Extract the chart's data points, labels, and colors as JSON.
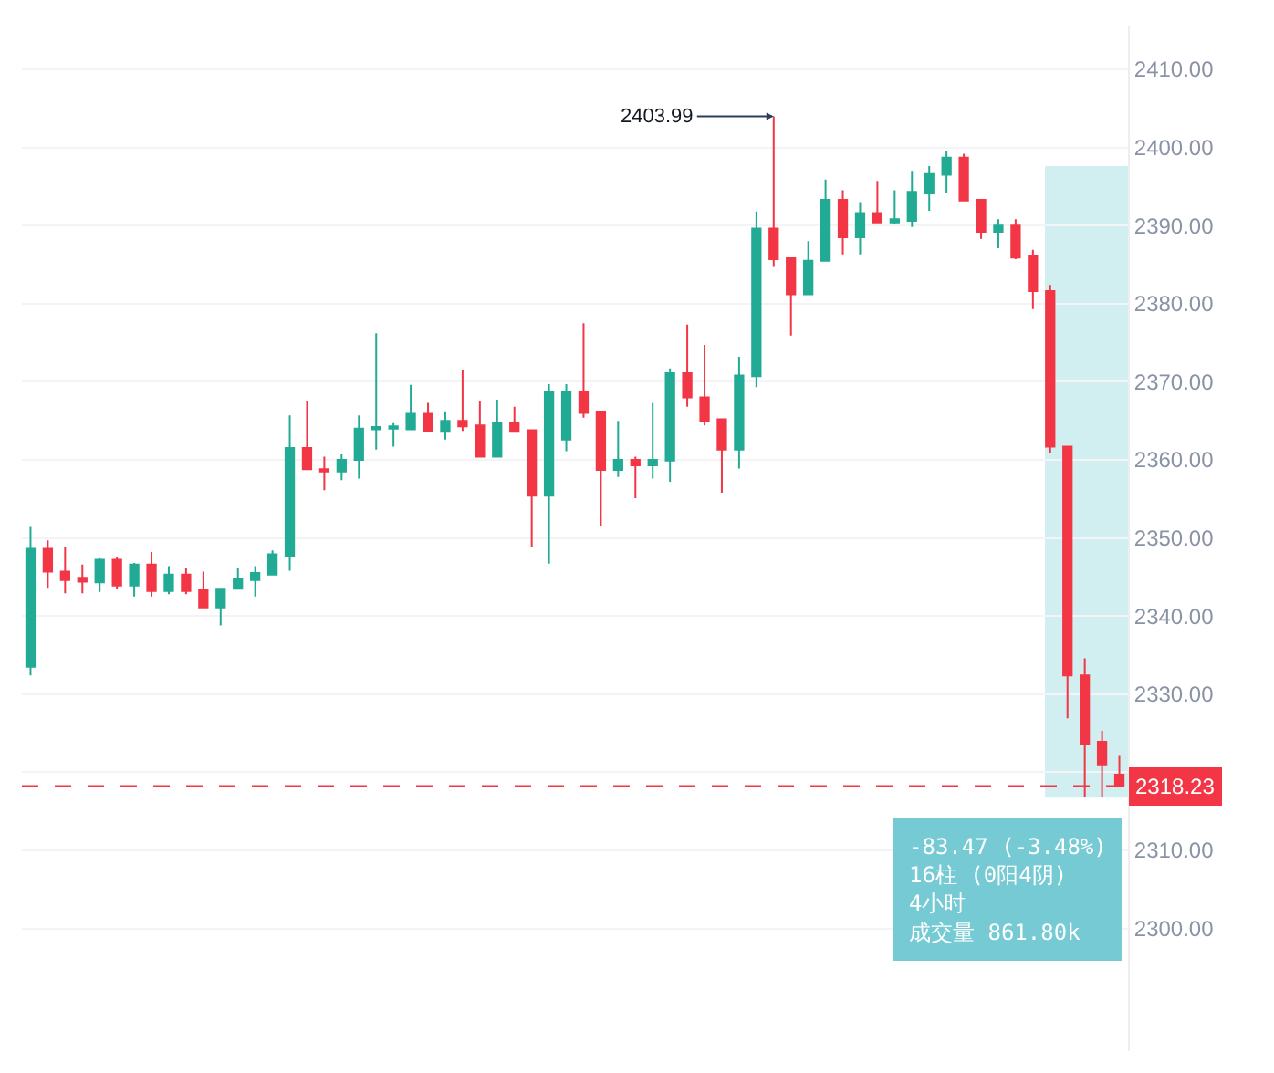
{
  "chart_data": {
    "type": "candlestick",
    "categories": [
      null,
      null,
      null,
      null,
      null,
      null,
      null,
      null,
      null,
      null,
      null,
      null,
      null,
      null,
      null,
      null,
      null,
      null,
      null,
      null,
      null,
      null,
      null,
      null,
      null,
      null,
      null,
      null,
      null,
      null,
      null,
      null,
      null,
      null,
      null,
      null,
      null,
      null,
      null,
      null,
      null,
      null,
      null,
      null,
      null,
      null,
      null,
      null,
      null,
      null,
      null,
      null,
      null,
      null,
      null,
      null,
      null,
      null,
      null,
      null,
      null,
      null,
      null,
      null
    ],
    "ohlc": [
      [
        2333.5,
        2351.4,
        2332.4,
        2348.6
      ],
      [
        2348.6,
        2349.7,
        2343.6,
        2345.7
      ],
      [
        2345.7,
        2348.8,
        2342.9,
        2344.6
      ],
      [
        2344.9,
        2346.6,
        2342.9,
        2344.4
      ],
      [
        2344.3,
        2347.4,
        2343.1,
        2347.2
      ],
      [
        2347.2,
        2347.6,
        2343.4,
        2343.9
      ],
      [
        2343.9,
        2346.8,
        2342.5,
        2346.6
      ],
      [
        2346.6,
        2348.2,
        2342.5,
        2343.2
      ],
      [
        2343.2,
        2346.4,
        2342.8,
        2345.3
      ],
      [
        2345.3,
        2346.2,
        2342.8,
        2343.2
      ],
      [
        2343.3,
        2345.7,
        2341.1,
        2341.1
      ],
      [
        2341.1,
        2343.5,
        2338.8,
        2343.5
      ],
      [
        2343.5,
        2346.1,
        2343.5,
        2344.8
      ],
      [
        2344.6,
        2346.4,
        2342.5,
        2345.5
      ],
      [
        2345.3,
        2348.4,
        2345.3,
        2347.9
      ],
      [
        2347.6,
        2365.7,
        2345.8,
        2361.5
      ],
      [
        2361.5,
        2367.5,
        2358.8,
        2358.8
      ],
      [
        2358.8,
        2360.4,
        2356.1,
        2358.5
      ],
      [
        2358.5,
        2360.7,
        2357.4,
        2360.0
      ],
      [
        2360.0,
        2365.7,
        2357.6,
        2364.0
      ],
      [
        2363.9,
        2376.2,
        2361.3,
        2364.2
      ],
      [
        2364.0,
        2364.7,
        2361.7,
        2364.3
      ],
      [
        2363.9,
        2369.6,
        2363.9,
        2365.9
      ],
      [
        2365.9,
        2367.3,
        2363.7,
        2363.7
      ],
      [
        2363.6,
        2366.1,
        2362.6,
        2365.0
      ],
      [
        2365.0,
        2371.5,
        2363.7,
        2364.3
      ],
      [
        2364.4,
        2367.6,
        2360.4,
        2360.4
      ],
      [
        2360.4,
        2367.7,
        2360.4,
        2364.7
      ],
      [
        2364.7,
        2366.8,
        2363.6,
        2363.6
      ],
      [
        2363.8,
        2363.8,
        2348.9,
        2355.4
      ],
      [
        2355.4,
        2369.7,
        2346.7,
        2368.7
      ],
      [
        2362.6,
        2369.7,
        2361.1,
        2368.7
      ],
      [
        2368.7,
        2377.5,
        2365.4,
        2366.0
      ],
      [
        2366.1,
        2366.1,
        2351.5,
        2358.7
      ],
      [
        2358.7,
        2365.0,
        2357.8,
        2360.0
      ],
      [
        2360.0,
        2360.4,
        2355.1,
        2359.3
      ],
      [
        2359.3,
        2367.3,
        2357.6,
        2360.0
      ],
      [
        2359.9,
        2371.7,
        2357.2,
        2371.1
      ],
      [
        2371.1,
        2377.3,
        2366.8,
        2368.0
      ],
      [
        2368.0,
        2374.7,
        2364.4,
        2365.0
      ],
      [
        2365.2,
        2365.2,
        2355.8,
        2361.3
      ],
      [
        2361.3,
        2373.2,
        2358.9,
        2370.8
      ],
      [
        2370.7,
        2391.8,
        2369.3,
        2389.6
      ],
      [
        2389.6,
        2403.99,
        2384.7,
        2385.7
      ],
      [
        2385.8,
        2385.8,
        2375.9,
        2381.2
      ],
      [
        2381.2,
        2388.0,
        2381.2,
        2385.5
      ],
      [
        2385.5,
        2395.9,
        2385.5,
        2393.3
      ],
      [
        2393.3,
        2394.5,
        2386.3,
        2388.5
      ],
      [
        2388.5,
        2393.0,
        2386.3,
        2391.6
      ],
      [
        2391.6,
        2395.7,
        2390.4,
        2390.4
      ],
      [
        2390.4,
        2394.5,
        2390.2,
        2390.8
      ],
      [
        2390.6,
        2397.0,
        2389.8,
        2394.3
      ],
      [
        2394.1,
        2397.6,
        2391.9,
        2396.6
      ],
      [
        2396.5,
        2399.6,
        2394.1,
        2398.7
      ],
      [
        2398.7,
        2399.2,
        2393.2,
        2393.2
      ],
      [
        2393.3,
        2393.3,
        2388.3,
        2389.2
      ],
      [
        2389.2,
        2390.8,
        2387.1,
        2390.0
      ],
      [
        2390.0,
        2390.8,
        2385.7,
        2385.9
      ],
      [
        2386.1,
        2386.9,
        2379.3,
        2381.6
      ],
      [
        2381.6,
        2382.4,
        2360.9,
        2361.7
      ],
      [
        2361.7,
        2361.7,
        2326.9,
        2332.4
      ],
      [
        2332.4,
        2334.6,
        2316.8,
        2323.6
      ],
      [
        2323.9,
        2325.3,
        2316.8,
        2321.0
      ],
      [
        2319.7,
        2322.1,
        2318.2,
        2318.23
      ]
    ],
    "colors": [
      "#22ab94",
      "#f23645",
      "#f23645",
      "#f23645",
      "#22ab94",
      "#f23645",
      "#22ab94",
      "#f23645",
      "#22ab94",
      "#f23645",
      "#f23645",
      "#22ab94",
      "#22ab94",
      "#22ab94",
      "#22ab94",
      "#22ab94",
      "#f23645",
      "#f23645",
      "#22ab94",
      "#22ab94",
      "#22ab94",
      "#22ab94",
      "#22ab94",
      "#f23645",
      "#22ab94",
      "#f23645",
      "#f23645",
      "#22ab94",
      "#f23645",
      "#f23645",
      "#22ab94",
      "#22ab94",
      "#f23645",
      "#f23645",
      "#22ab94",
      "#f23645",
      "#22ab94",
      "#22ab94",
      "#f23645",
      "#f23645",
      "#f23645",
      "#22ab94",
      "#22ab94",
      "#f23645",
      "#f23645",
      "#22ab94",
      "#22ab94",
      "#f23645",
      "#22ab94",
      "#f23645",
      "#22ab94",
      "#22ab94",
      "#22ab94",
      "#22ab94",
      "#f23645",
      "#f23645",
      "#22ab94",
      "#f23645",
      "#f23645",
      "#f23645",
      "#f23645",
      "#f23645",
      "#f23645",
      "#f23645"
    ],
    "ylim": [
      2284.3,
      2415.6
    ],
    "yticks": [
      {
        "value": 2300,
        "label": "2300.00"
      },
      {
        "value": 2310,
        "label": "2310.00"
      },
      {
        "value": 2320,
        "label": null
      },
      {
        "value": 2330,
        "label": "2330.00"
      },
      {
        "value": 2340,
        "label": "2340.00"
      },
      {
        "value": 2350,
        "label": "2350.00"
      },
      {
        "value": 2360,
        "label": "2360.00"
      },
      {
        "value": 2370,
        "label": "2370.00"
      },
      {
        "value": 2380,
        "label": "2380.00"
      },
      {
        "value": 2390,
        "label": "2390.00"
      },
      {
        "value": 2400,
        "label": "2400.00"
      },
      {
        "value": 2410,
        "label": "2410.00"
      }
    ],
    "tick_labels": "y",
    "grid": "y",
    "ref_lines": [
      {
        "axis": "y",
        "value": 2318.23,
        "label": "2318.23",
        "color": "#f23645",
        "line_style": "dashed"
      }
    ],
    "annotations": [
      "2403.99",
      "-83.47 (-3.48%)",
      "16柱 (0阳4阴)",
      "4小时",
      "成交量 861.80k"
    ]
  }
}
